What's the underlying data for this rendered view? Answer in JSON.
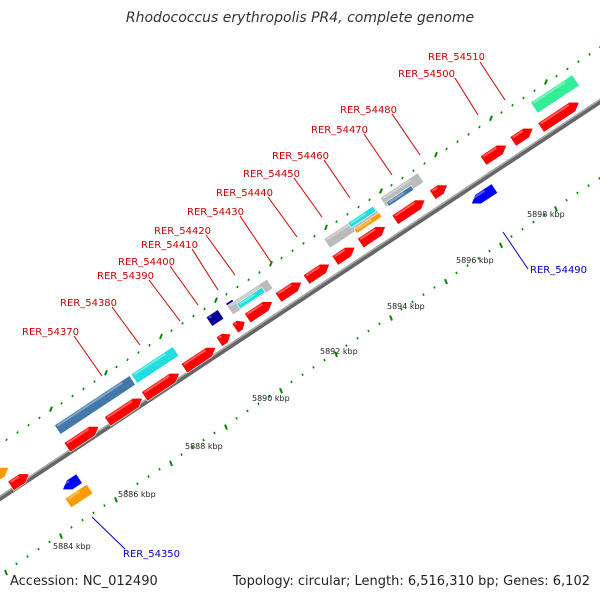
{
  "title": "Rhodococcus erythropolis PR4, complete genome",
  "footer": {
    "accession": "Accession: NC_012490",
    "summary": "Topology: circular; Length: 6,516,310 bp; Genes: 6,102"
  },
  "colors": {
    "red": "#ff0000",
    "blue": "#0000ff",
    "orange": "#ff9900",
    "cyan": "#22dddd",
    "teal": "#4477aa",
    "purple": "#7766cc",
    "mint": "#33ee99",
    "grey": "#bbbbbb",
    "navy": "#000099",
    "axis": "#888888",
    "tick": "#008800"
  },
  "kbp_labels": [
    "5884 kbp",
    "5886 kbp",
    "5888 kbp",
    "5890 kbp",
    "5892 kbp",
    "5894 kbp",
    "5896 kbp",
    "5898 kbp"
  ],
  "gene_labels": [
    {
      "text": "RER_54510",
      "color": "red"
    },
    {
      "text": "RER_54500",
      "color": "red"
    },
    {
      "text": "RER_54480",
      "color": "red"
    },
    {
      "text": "RER_54470",
      "color": "red"
    },
    {
      "text": "RER_54460",
      "color": "red"
    },
    {
      "text": "RER_54450",
      "color": "red"
    },
    {
      "text": "RER_54440",
      "color": "red"
    },
    {
      "text": "RER_54430",
      "color": "red"
    },
    {
      "text": "RER_54420",
      "color": "red"
    },
    {
      "text": "RER_54410",
      "color": "red"
    },
    {
      "text": "RER_54400",
      "color": "red"
    },
    {
      "text": "RER_54390",
      "color": "red"
    },
    {
      "text": "RER_54380",
      "color": "red"
    },
    {
      "text": "RER_54370",
      "color": "red"
    },
    {
      "text": "RER_54490",
      "color": "blue"
    },
    {
      "text": "RER_54350",
      "color": "blue"
    }
  ]
}
